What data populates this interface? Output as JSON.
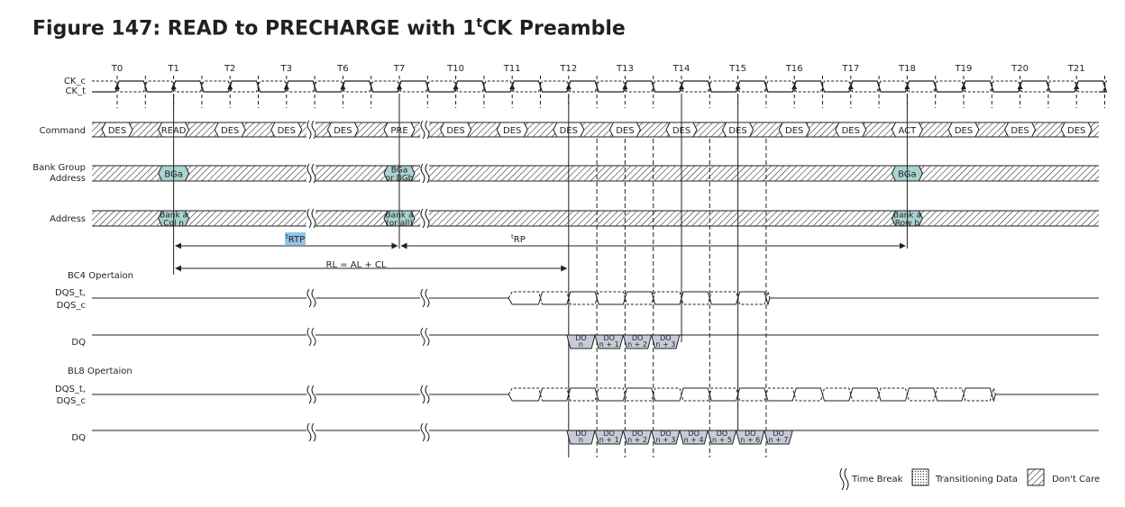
{
  "figure": {
    "title_prefix": "Figure 147: READ to PRECHARGE with 1",
    "title_sup": "t",
    "title_suffix": "CK Preamble"
  },
  "clock": {
    "labels": [
      "T0",
      "T1",
      "T2",
      "T3",
      "T6",
      "T7",
      "T10",
      "T11",
      "T12",
      "T13",
      "T14",
      "T15",
      "T16",
      "T17",
      "T18",
      "T19",
      "T20",
      "T21"
    ],
    "ck_c_label": "CK_c",
    "ck_t_label": "CK_t"
  },
  "rows": {
    "command": "Command",
    "bank_group_line1": "Bank Group",
    "bank_group_line2": "Address",
    "address": "Address",
    "bc4_header": "BC4 Opertaion",
    "dqs_t": "DQS_t,",
    "dqs_c": "DQS_c",
    "dq": "DQ",
    "bl8_header": "BL8 Opertaion"
  },
  "commands": [
    "DES",
    "READ",
    "DES",
    "DES",
    "DES",
    "PRE",
    "DES",
    "DES",
    "DES",
    "DES",
    "DES",
    "DES",
    "DES",
    "DES",
    "ACT",
    "DES",
    "DES",
    "DES"
  ],
  "bank_group": {
    "read": [
      "BGa"
    ],
    "pre": [
      "BGa",
      "or BGb"
    ],
    "act": [
      "BGa"
    ]
  },
  "address": {
    "read": [
      "Bank a",
      "Col n"
    ],
    "pre": [
      "Bank a",
      "(or all)"
    ],
    "act": [
      "Bank a",
      "Row b"
    ]
  },
  "timing": {
    "trtp_sup": "t",
    "trtp_main": "RTP",
    "trp_sup": "t",
    "trp_main": "RP",
    "rl": "RL = AL + CL"
  },
  "dq_bc4": [
    [
      "DO",
      "n"
    ],
    [
      "DO",
      "n + 1"
    ],
    [
      "DO",
      "n + 2"
    ],
    [
      "DO",
      "n + 3"
    ]
  ],
  "dq_bl8": [
    [
      "DO",
      "n"
    ],
    [
      "DO",
      "n + 1"
    ],
    [
      "DO",
      "n + 2"
    ],
    [
      "DO",
      "n + 3"
    ],
    [
      "DO",
      "n + 4"
    ],
    [
      "DO",
      "n + 5"
    ],
    [
      "DO",
      "n + 6"
    ],
    [
      "DO",
      "n + 7"
    ]
  ],
  "legend": {
    "time_break": "Time Break",
    "transitioning": "Transitioning Data",
    "dont_care": "Don't Care"
  },
  "colors": {
    "line": "#231f20",
    "cmd_fill": "#ffffff",
    "bank_fill": "#a8d3cf",
    "dq_fill": "#c6cbd8",
    "highlight": "#8fc5e8"
  }
}
